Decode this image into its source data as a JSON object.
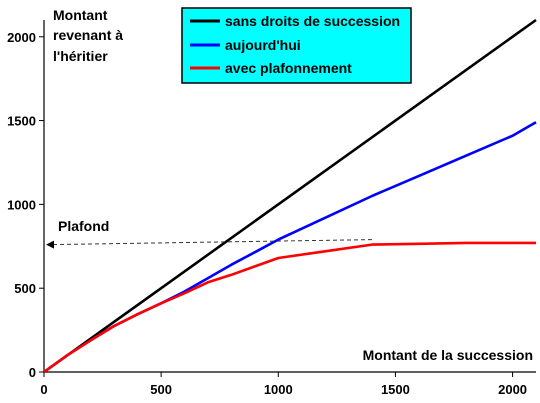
{
  "chart_data": {
    "type": "line",
    "title": "",
    "xlabel": "Montant de la succession",
    "ylabel_lines": [
      "Montant",
      "revenant à",
      "l'héritier"
    ],
    "xlim": [
      0,
      2100
    ],
    "ylim": [
      0,
      2100
    ],
    "x_ticks": [
      0,
      500,
      1000,
      1500,
      2000
    ],
    "y_ticks": [
      0,
      500,
      1000,
      1500,
      2000
    ],
    "grid": false,
    "legend_position": "top-center",
    "series": [
      {
        "name": "sans droits de succession",
        "color": "#000000",
        "points": [
          [
            0,
            0
          ],
          [
            2100,
            2100
          ]
        ]
      },
      {
        "name": "aujourd'hui",
        "color": "#0000ff",
        "points": [
          [
            0,
            0
          ],
          [
            100,
            100
          ],
          [
            200,
            190
          ],
          [
            300,
            275
          ],
          [
            400,
            345
          ],
          [
            500,
            410
          ],
          [
            600,
            480
          ],
          [
            700,
            560
          ],
          [
            800,
            640
          ],
          [
            900,
            715
          ],
          [
            1000,
            790
          ],
          [
            1200,
            920
          ],
          [
            1400,
            1050
          ],
          [
            1600,
            1170
          ],
          [
            1800,
            1290
          ],
          [
            2000,
            1410
          ],
          [
            2100,
            1490
          ]
        ]
      },
      {
        "name": "avec plafonnement",
        "color": "#ff0000",
        "points": [
          [
            0,
            0
          ],
          [
            100,
            100
          ],
          [
            200,
            190
          ],
          [
            300,
            275
          ],
          [
            400,
            345
          ],
          [
            500,
            410
          ],
          [
            600,
            470
          ],
          [
            700,
            535
          ],
          [
            800,
            580
          ],
          [
            900,
            630
          ],
          [
            1000,
            680
          ],
          [
            1200,
            720
          ],
          [
            1400,
            760
          ],
          [
            1600,
            765
          ],
          [
            1800,
            770
          ],
          [
            2000,
            770
          ],
          [
            2100,
            770
          ]
        ]
      }
    ],
    "annotations": [
      {
        "text": "Plafond",
        "arrow_from": [
          1400,
          760
        ],
        "arrow_to": [
          0,
          760
        ]
      }
    ],
    "legend_background": "#00ffff"
  }
}
